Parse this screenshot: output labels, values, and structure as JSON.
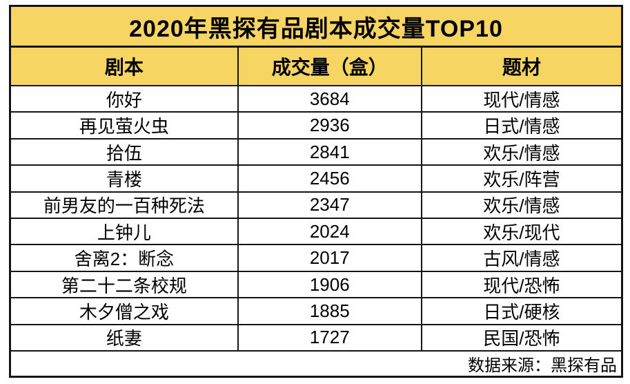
{
  "chart_data": {
    "type": "table",
    "title": "2020年黑探有品剧本成交量TOP10",
    "columns": [
      "剧本",
      "成交量（盒）",
      "题材"
    ],
    "rows": [
      [
        "你好",
        3684,
        "现代/情感"
      ],
      [
        "再见萤火虫",
        2936,
        "日式/情感"
      ],
      [
        "拾伍",
        2841,
        "欢乐/情感"
      ],
      [
        "青楼",
        2456,
        "欢乐/阵营"
      ],
      [
        "前男友的一百种死法",
        2347,
        "欢乐/情感"
      ],
      [
        "上钟儿",
        2024,
        "欢乐/现代"
      ],
      [
        "舍离2：断念",
        2017,
        "古风/情感"
      ],
      [
        "第二十二条校规",
        1906,
        "现代/恐怖"
      ],
      [
        "木夕僧之戏",
        1885,
        "日式/硬核"
      ],
      [
        "纸妻",
        1727,
        "民国/恐怖"
      ]
    ],
    "source": "数据来源：黑探有品",
    "layout": {
      "header_bg": "#f6d563",
      "row_bg": "#ffffff",
      "border_color": "#141414",
      "text_color": "#000000"
    }
  }
}
